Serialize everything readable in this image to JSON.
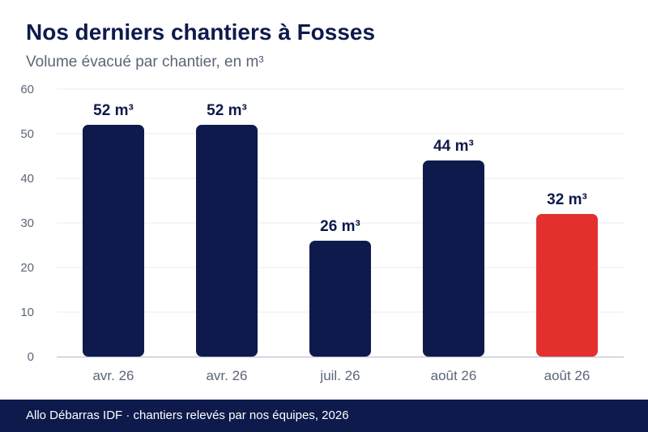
{
  "header": {
    "title": "Nos derniers chantiers à Fosses",
    "subtitle": "Volume évacué par chantier, en m³"
  },
  "footer": {
    "text": "Allo Débarras IDF · chantiers relevés par nos équipes, 2026"
  },
  "colors": {
    "bar": "#0e1a4c",
    "highlight": "#e3302f",
    "grid": "#e9ebef",
    "axis": "#c5c9d3",
    "tick_label": "#5b6578"
  },
  "chart_data": {
    "type": "bar",
    "title": "Nos derniers chantiers à Fosses",
    "subtitle": "Volume évacué par chantier, en m³",
    "categories": [
      "avr. 26",
      "avr. 26",
      "juil. 26",
      "août 26",
      "août 26"
    ],
    "values": [
      52,
      52,
      26,
      44,
      32
    ],
    "data_labels": [
      "52 m³",
      "52 m³",
      "26 m³",
      "44 m³",
      "32 m³"
    ],
    "highlight_index": 4,
    "ylim": [
      0,
      60
    ],
    "yticks": [
      0,
      10,
      20,
      30,
      40,
      50,
      60
    ],
    "grid": true,
    "legend": "none"
  }
}
